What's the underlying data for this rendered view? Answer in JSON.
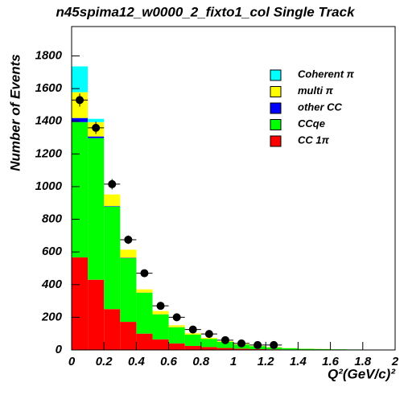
{
  "chart_data": {
    "type": "stacked-histogram",
    "title": "n45spima12_w0000_2_fixto1_col Single Track",
    "x_label": "Q²(GeV/c)²",
    "y_label": "Number of Events",
    "bins": [
      0,
      0.1,
      0.2,
      0.3,
      0.4,
      0.5,
      0.6,
      0.7,
      0.8,
      0.9,
      1.0,
      1.1,
      1.2,
      1.3,
      1.4,
      1.5,
      1.6,
      1.7,
      1.8,
      1.9,
      2.0
    ],
    "series": [
      {
        "name": "CC 1π",
        "color": "#ff0000",
        "values": [
          567,
          430,
          250,
          172,
          100,
          65,
          40,
          25,
          18,
          12,
          8,
          5,
          4,
          3,
          2,
          1,
          1,
          1,
          0,
          0
        ]
      },
      {
        "name": "CCqe",
        "color": "#00ff00",
        "values": [
          828,
          867,
          628,
          390,
          250,
          152,
          98,
          69,
          50,
          38,
          25,
          18,
          12,
          8,
          5,
          4,
          3,
          2,
          2,
          1
        ]
      },
      {
        "name": "other CC",
        "color": "#0000ff",
        "values": [
          25,
          10,
          3,
          2,
          1,
          1,
          1,
          0,
          0,
          0,
          0,
          0,
          0,
          0,
          0,
          0,
          0,
          0,
          0,
          0
        ]
      },
      {
        "name": "multi π",
        "color": "#ffff00",
        "values": [
          158,
          88,
          71,
          50,
          20,
          20,
          12,
          8,
          6,
          4,
          3,
          2,
          2,
          1,
          1,
          1,
          0,
          0,
          0,
          0
        ]
      },
      {
        "name": "Coherent π",
        "color": "#00ffff",
        "values": [
          158,
          20,
          0,
          0,
          0,
          0,
          0,
          0,
          0,
          0,
          0,
          0,
          0,
          0,
          0,
          0,
          0,
          0,
          0,
          0
        ]
      }
    ],
    "points": {
      "x": [
        0.05,
        0.15,
        0.25,
        0.35,
        0.45,
        0.55,
        0.65,
        0.75,
        0.85,
        0.95,
        1.05,
        1.15,
        1.25
      ],
      "values": [
        1530,
        1360,
        1015,
        675,
        470,
        270,
        200,
        125,
        98,
        60,
        40,
        30,
        30
      ],
      "errors": [
        40,
        37,
        32,
        26,
        22,
        16,
        14,
        11,
        10,
        8,
        6,
        5,
        5
      ]
    },
    "xlim": [
      0,
      2
    ],
    "ylim": [
      0,
      1980
    ],
    "xticks": [
      0,
      0.2,
      0.4,
      0.6,
      0.8,
      1,
      1.2,
      1.4,
      1.6,
      1.8,
      2
    ],
    "yticks": [
      0,
      200,
      400,
      600,
      800,
      1000,
      1200,
      1400,
      1600,
      1800
    ]
  }
}
